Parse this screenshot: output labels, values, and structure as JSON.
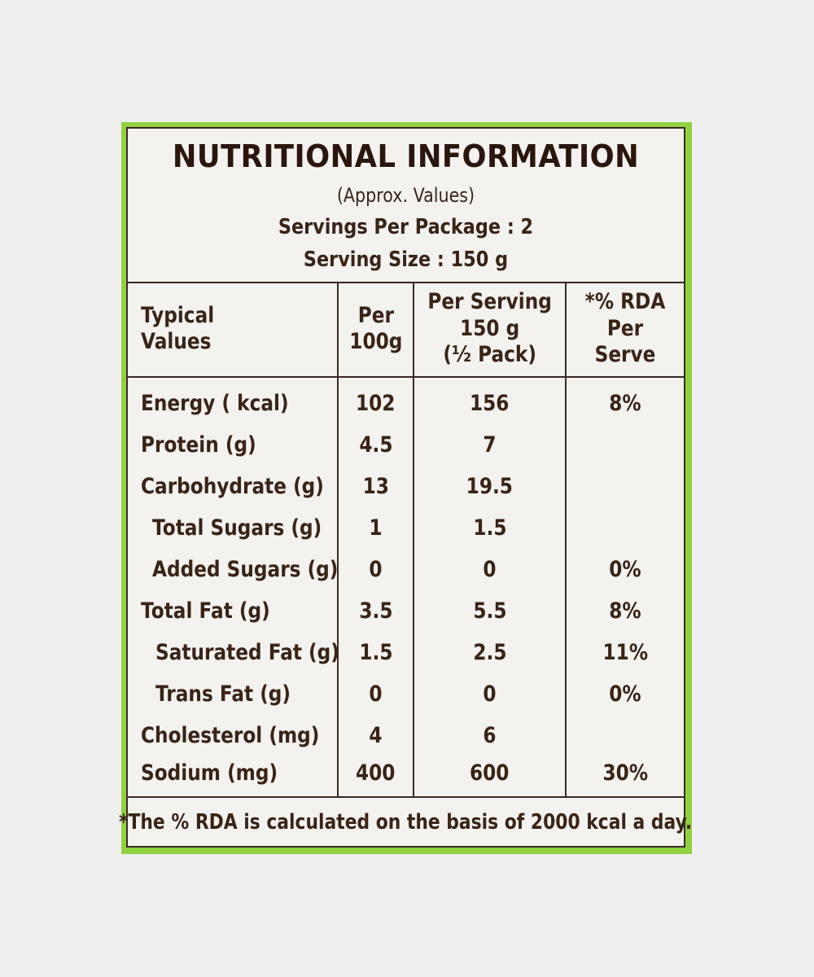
{
  "panel": {
    "title": "NUTRITIONAL INFORMATION",
    "subtitle": "(Approx. Values)",
    "servings_per_package": "Servings Per Package : 2",
    "serving_size": "Serving Size : 150 g"
  },
  "table": {
    "headers": [
      "Typical\nValues",
      "Per\n100g",
      "Per Serving\n150 g\n(½ Pack)",
      "*% RDA\nPer Serve"
    ],
    "rows": [
      {
        "name": "Energy ( kcal)",
        "per100": "102",
        "perServing": "156",
        "rda": "8%"
      },
      {
        "name": "Protein (g)",
        "per100": "4.5",
        "perServing": "7",
        "rda": ""
      },
      {
        "name": "Carbohydrate (g)",
        "per100": "13",
        "perServing": "19.5",
        "rda": ""
      },
      {
        "name": "Total Sugars (g)",
        "per100": "1",
        "perServing": "1.5",
        "rda": ""
      },
      {
        "name": "Added Sugars (g)",
        "per100": "0",
        "perServing": "0",
        "rda": "0%"
      },
      {
        "name": "Total Fat (g)",
        "per100": "3.5",
        "perServing": "5.5",
        "rda": "8%"
      },
      {
        "name": "Saturated Fat (g)",
        "per100": "1.5",
        "perServing": "2.5",
        "rda": "11%"
      },
      {
        "name": "Trans Fat (g)",
        "per100": "0",
        "perServing": "0",
        "rda": "0%"
      },
      {
        "name": "Cholesterol (mg)",
        "per100": "4",
        "perServing": "6",
        "rda": ""
      },
      {
        "name": "Sodium (mg)",
        "per100": "400",
        "perServing": "600",
        "rda": "30%"
      }
    ]
  },
  "footnote": "*The % RDA is calculated on the basis of 2000 kcal a day.",
  "colors": {
    "background": "#efefef",
    "frame_green": "#8fd13f",
    "card": "#f3f2ef",
    "text_brown": "#3a2416"
  }
}
